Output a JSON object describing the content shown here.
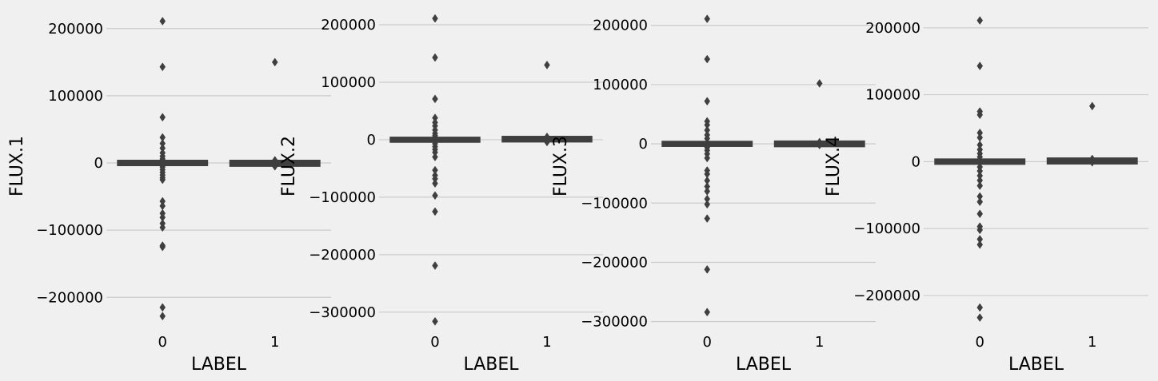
{
  "background": "#f0f0f0",
  "grid_color": "#cbcbcb",
  "box_color": "#3f3f3f",
  "chart_data": [
    {
      "type": "box",
      "ylabel": "FLUX.1",
      "xlabel": "LABEL",
      "categories": [
        "0",
        "1"
      ],
      "ylim": [
        -252000,
        233000
      ],
      "yticks": [
        -200000,
        -100000,
        0,
        100000,
        200000
      ],
      "ytick_labels": [
        "−200000",
        "−100000",
        "0",
        "100000",
        "200000"
      ],
      "grid": true,
      "boxes": [
        {
          "category": "0",
          "q1": -1500,
          "median": 0,
          "q3": 1500,
          "whislo": -4000,
          "whishi": 4000,
          "outliers": [
            211000,
            143000,
            68000,
            38000,
            29000,
            22000,
            15000,
            10000,
            6000,
            -6000,
            -10000,
            -14000,
            -18000,
            -22000,
            -25000,
            -57000,
            -64000,
            -75000,
            -81000,
            -90000,
            -96000,
            -123000,
            -125000,
            -215000,
            -228000
          ]
        },
        {
          "category": "1",
          "q1": -2500,
          "median": -500,
          "q3": 1500,
          "whislo": -3500,
          "whishi": 2500,
          "outliers": [
            150000,
            4000,
            -5000
          ]
        }
      ]
    },
    {
      "type": "box",
      "ylabel": "FLUX.2",
      "xlabel": "LABEL",
      "categories": [
        "0",
        "1"
      ],
      "ylim": [
        -335000,
        232000
      ],
      "yticks": [
        -300000,
        -200000,
        -100000,
        0,
        100000,
        200000
      ],
      "ytick_labels": [
        "−300000",
        "−200000",
        "−100000",
        "0",
        "100000",
        "200000"
      ],
      "grid": true,
      "boxes": [
        {
          "category": "0",
          "q1": -1500,
          "median": 0,
          "q3": 1500,
          "whislo": -4000,
          "whishi": 4000,
          "outliers": [
            211000,
            143000,
            71000,
            38000,
            30000,
            24000,
            17000,
            11000,
            7000,
            -7000,
            -12000,
            -17000,
            -22000,
            -30000,
            -53000,
            -62000,
            -68000,
            -76000,
            -97000,
            -125000,
            -219000,
            -316000
          ]
        },
        {
          "category": "1",
          "q1": -1000,
          "median": 1000,
          "q3": 3000,
          "whislo": -2500,
          "whishi": 4500,
          "outliers": [
            130000,
            5000,
            -4000
          ]
        }
      ]
    },
    {
      "type": "box",
      "ylabel": "FLUX.3",
      "xlabel": "LABEL",
      "categories": [
        "0",
        "1"
      ],
      "ylim": [
        -318000,
        232000
      ],
      "yticks": [
        -300000,
        -200000,
        -100000,
        0,
        100000,
        200000
      ],
      "ytick_labels": [
        "−300000",
        "−200000",
        "−100000",
        "0",
        "100000",
        "200000"
      ],
      "grid": true,
      "boxes": [
        {
          "category": "0",
          "q1": -1500,
          "median": 0,
          "q3": 1500,
          "whislo": -4000,
          "whishi": 4000,
          "outliers": [
            211000,
            143000,
            72000,
            38000,
            32000,
            23000,
            15000,
            9000,
            -6000,
            -11000,
            -17000,
            -24000,
            -45000,
            -51000,
            -62000,
            -72000,
            -80000,
            -93000,
            -102000,
            -126000,
            -212000,
            -284000
          ]
        },
        {
          "category": "1",
          "q1": -2000,
          "median": 0,
          "q3": 2000,
          "whislo": -3500,
          "whishi": 3000,
          "outliers": [
            102000,
            3000,
            -2000
          ]
        }
      ]
    },
    {
      "type": "box",
      "ylabel": "FLUX.4",
      "xlabel": "LABEL",
      "categories": [
        "0",
        "1"
      ],
      "ylim": [
        -255000,
        232000
      ],
      "yticks": [
        -200000,
        -100000,
        0,
        100000,
        200000
      ],
      "ytick_labels": [
        "−200000",
        "−100000",
        "0",
        "100000",
        "200000"
      ],
      "grid": true,
      "boxes": [
        {
          "category": "0",
          "q1": -1500,
          "median": 0,
          "q3": 1500,
          "whislo": -4000,
          "whishi": 4000,
          "outliers": [
            211000,
            143000,
            75000,
            70000,
            43000,
            36000,
            25000,
            18000,
            12000,
            7000,
            -8000,
            -14000,
            -21000,
            -28000,
            -36000,
            -52000,
            -60000,
            -78000,
            -97000,
            -102000,
            -116000,
            -124000,
            -218000,
            -233000
          ]
        },
        {
          "category": "1",
          "q1": -1000,
          "median": 1000,
          "q3": 3000,
          "whislo": -2500,
          "whishi": 4000,
          "outliers": [
            83000,
            4000,
            -1000
          ]
        }
      ]
    }
  ]
}
